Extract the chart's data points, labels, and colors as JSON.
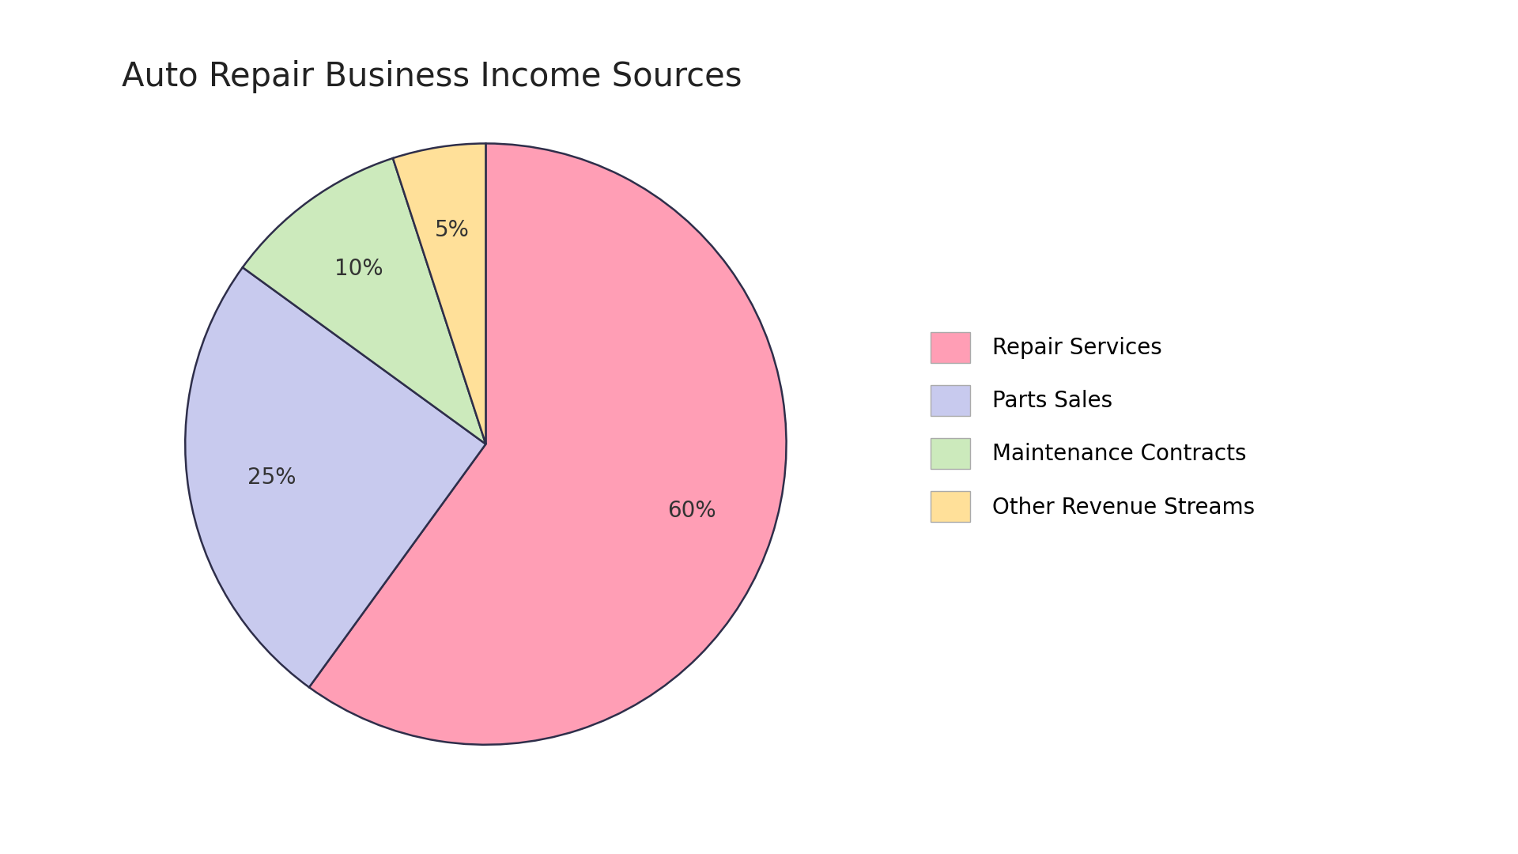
{
  "title": "Auto Repair Business Income Sources",
  "labels": [
    "Repair Services",
    "Parts Sales",
    "Maintenance Contracts",
    "Other Revenue Streams"
  ],
  "values": [
    60,
    25,
    10,
    5
  ],
  "colors": [
    "#FF9EB5",
    "#C8CAEE",
    "#CCEABC",
    "#FFE099"
  ],
  "edge_color": "#2E2E4A",
  "edge_width": 1.8,
  "title_fontsize": 30,
  "label_fontsize": 20,
  "legend_fontsize": 20,
  "background_color": "#FFFFFF",
  "startangle": 90,
  "pct_distance": 0.72
}
